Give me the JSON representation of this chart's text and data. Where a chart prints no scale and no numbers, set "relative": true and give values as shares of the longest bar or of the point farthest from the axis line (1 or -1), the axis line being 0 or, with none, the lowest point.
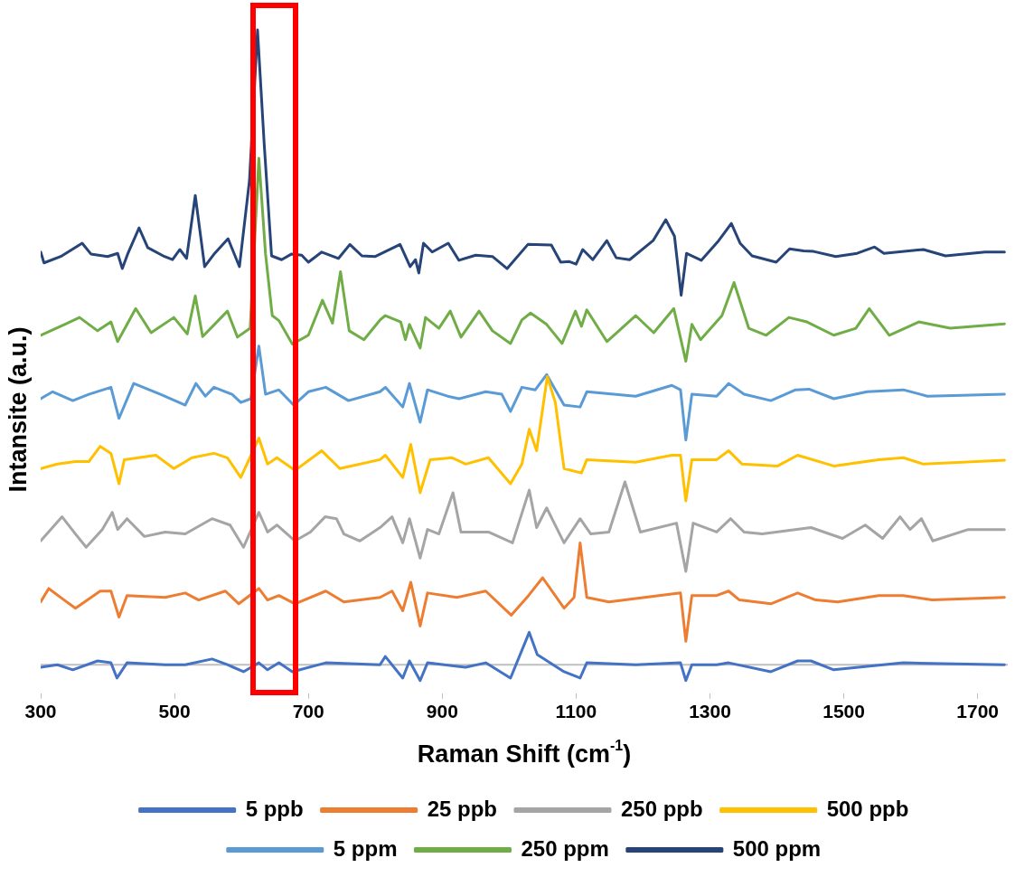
{
  "chart_data": {
    "type": "line",
    "xlabel": "Raman Shift (cm$^{-1}$)",
    "ylabel": "Intansite (a.u.)",
    "xlim": [
      300,
      1745
    ],
    "xticks": [
      300,
      500,
      700,
      900,
      1100,
      1300,
      1500,
      1700
    ],
    "relative": true,
    "grid": false,
    "legend": "bottom",
    "marker": "none",
    "series": [
      {
        "name": "5 ppb",
        "color": "#4472c4",
        "x": [
          300,
          325,
          348,
          385,
          405,
          414,
          429,
          486,
          516,
          556,
          579,
          603,
          626,
          639,
          656,
          676,
          726,
          807,
          815,
          841,
          851,
          867,
          878,
          935,
          965,
          1002,
          1030,
          1042,
          1082,
          1106,
          1116,
          1189,
          1256,
          1264,
          1273,
          1310,
          1328,
          1391,
          1431,
          1451,
          1485,
          1589,
          1740
        ],
        "values": [
          -0.004,
          0.0,
          -0.008,
          0.006,
          0.003,
          -0.021,
          0.003,
          0.0,
          0.0,
          0.009,
          0.0,
          -0.011,
          0.003,
          -0.008,
          0.003,
          -0.011,
          0.003,
          0.0,
          0.013,
          -0.021,
          0.006,
          -0.025,
          0.003,
          -0.004,
          0.003,
          -0.021,
          0.051,
          0.016,
          -0.011,
          -0.021,
          0.003,
          0.0,
          0.003,
          -0.025,
          0.0,
          0.0,
          0.003,
          -0.011,
          0.006,
          0.006,
          -0.008,
          0.003,
          0.0
        ]
      },
      {
        "name": "25 ppb",
        "color": "#ed7d31",
        "x": [
          300,
          312,
          335,
          352,
          389,
          405,
          417,
          429,
          486,
          516,
          536,
          576,
          596,
          626,
          639,
          656,
          680,
          726,
          753,
          807,
          825,
          841,
          853,
          867,
          878,
          922,
          965,
          1003,
          1029,
          1050,
          1082,
          1097,
          1106,
          1116,
          1149,
          1256,
          1264,
          1273,
          1310,
          1328,
          1344,
          1391,
          1431,
          1458,
          1491,
          1552,
          1589,
          1632,
          1740
        ],
        "values": [
          0.099,
          0.12,
          0.102,
          0.089,
          0.116,
          0.116,
          0.075,
          0.109,
          0.106,
          0.113,
          0.102,
          0.116,
          0.096,
          0.12,
          0.102,
          0.109,
          0.096,
          0.116,
          0.099,
          0.106,
          0.116,
          0.085,
          0.13,
          0.061,
          0.113,
          0.106,
          0.116,
          0.078,
          0.109,
          0.137,
          0.089,
          0.106,
          0.192,
          0.106,
          0.099,
          0.113,
          0.037,
          0.109,
          0.109,
          0.116,
          0.102,
          0.096,
          0.113,
          0.102,
          0.099,
          0.109,
          0.109,
          0.102,
          0.106
        ]
      },
      {
        "name": "250 ppb",
        "color": "#a5a5a5",
        "x": [
          300,
          332,
          352,
          368,
          392,
          407,
          415,
          429,
          455,
          486,
          516,
          556,
          583,
          603,
          626,
          639,
          653,
          680,
          703,
          725,
          742,
          753,
          777,
          807,
          825,
          841,
          851,
          867,
          878,
          895,
          916,
          928,
          969,
          1005,
          1030,
          1041,
          1056,
          1082,
          1106,
          1122,
          1149,
          1173,
          1196,
          1250,
          1264,
          1275,
          1310,
          1331,
          1351,
          1378,
          1451,
          1498,
          1532,
          1558,
          1584,
          1599,
          1616,
          1633,
          1686,
          1740
        ],
        "values": [
          0.195,
          0.233,
          0.206,
          0.185,
          0.213,
          0.24,
          0.213,
          0.23,
          0.202,
          0.209,
          0.206,
          0.23,
          0.22,
          0.185,
          0.24,
          0.209,
          0.22,
          0.195,
          0.209,
          0.233,
          0.23,
          0.206,
          0.195,
          0.216,
          0.233,
          0.192,
          0.23,
          0.168,
          0.213,
          0.206,
          0.271,
          0.209,
          0.209,
          0.192,
          0.275,
          0.216,
          0.247,
          0.192,
          0.23,
          0.206,
          0.209,
          0.288,
          0.209,
          0.223,
          0.147,
          0.223,
          0.209,
          0.23,
          0.209,
          0.206,
          0.216,
          0.199,
          0.22,
          0.199,
          0.233,
          0.213,
          0.23,
          0.195,
          0.213,
          0.213
        ]
      },
      {
        "name": "500 ppb",
        "color": "#ffc000",
        "x": [
          300,
          325,
          352,
          372,
          389,
          405,
          417,
          425,
          472,
          499,
          526,
          559,
          579,
          599,
          626,
          639,
          653,
          680,
          720,
          747,
          807,
          815,
          841,
          853,
          867,
          882,
          915,
          935,
          969,
          1002,
          1019,
          1030,
          1041,
          1057,
          1069,
          1082,
          1108,
          1116,
          1189,
          1243,
          1256,
          1264,
          1273,
          1310,
          1328,
          1348,
          1401,
          1431,
          1485,
          1552,
          1589,
          1619,
          1740
        ],
        "values": [
          0.309,
          0.316,
          0.32,
          0.32,
          0.344,
          0.333,
          0.285,
          0.323,
          0.33,
          0.309,
          0.326,
          0.333,
          0.326,
          0.295,
          0.357,
          0.316,
          0.326,
          0.306,
          0.337,
          0.309,
          0.323,
          0.33,
          0.295,
          0.347,
          0.271,
          0.323,
          0.326,
          0.316,
          0.326,
          0.285,
          0.316,
          0.371,
          0.337,
          0.454,
          0.413,
          0.309,
          0.302,
          0.323,
          0.319,
          0.33,
          0.33,
          0.258,
          0.323,
          0.323,
          0.337,
          0.316,
          0.313,
          0.33,
          0.313,
          0.323,
          0.326,
          0.316,
          0.322
        ]
      },
      {
        "name": "5 ppm",
        "color": "#5b9bd5",
        "x": [
          300,
          318,
          348,
          372,
          405,
          417,
          439,
          479,
          516,
          532,
          546,
          559,
          586,
          599,
          614,
          626,
          636,
          656,
          678,
          700,
          726,
          760,
          807,
          815,
          841,
          851,
          867,
          878,
          908,
          925,
          965,
          989,
          1002,
          1019,
          1039,
          1056,
          1082,
          1106,
          1116,
          1189,
          1243,
          1256,
          1264,
          1273,
          1310,
          1328,
          1351,
          1391,
          1428,
          1448,
          1485,
          1535,
          1589,
          1625,
          1740
        ],
        "values": [
          0.419,
          0.43,
          0.416,
          0.426,
          0.437,
          0.388,
          0.443,
          0.426,
          0.409,
          0.443,
          0.423,
          0.437,
          0.426,
          0.413,
          0.419,
          0.502,
          0.426,
          0.433,
          0.409,
          0.43,
          0.437,
          0.416,
          0.43,
          0.437,
          0.406,
          0.443,
          0.382,
          0.433,
          0.423,
          0.419,
          0.43,
          0.426,
          0.399,
          0.437,
          0.433,
          0.457,
          0.409,
          0.406,
          0.43,
          0.423,
          0.44,
          0.433,
          0.354,
          0.426,
          0.423,
          0.443,
          0.426,
          0.416,
          0.433,
          0.434,
          0.419,
          0.43,
          0.433,
          0.423,
          0.426
        ]
      },
      {
        "name": "250 ppm",
        "color": "#70ad47",
        "x": [
          300,
          338,
          358,
          385,
          405,
          415,
          442,
          465,
          499,
          519,
          531,
          542,
          579,
          594,
          613,
          626,
          636,
          646,
          656,
          676,
          700,
          721,
          736,
          748,
          761,
          783,
          807,
          815,
          838,
          845,
          851,
          867,
          875,
          895,
          912,
          928,
          955,
          975,
          1002,
          1019,
          1032,
          1056,
          1079,
          1099,
          1108,
          1116,
          1146,
          1189,
          1216,
          1246,
          1264,
          1273,
          1286,
          1318,
          1336,
          1358,
          1384,
          1418,
          1445,
          1485,
          1518,
          1538,
          1568,
          1612,
          1659,
          1740
        ],
        "values": [
          0.519,
          0.537,
          0.547,
          0.526,
          0.54,
          0.509,
          0.561,
          0.523,
          0.547,
          0.521,
          0.581,
          0.517,
          0.557,
          0.516,
          0.53,
          0.798,
          0.647,
          0.55,
          0.542,
          0.505,
          0.519,
          0.574,
          0.538,
          0.619,
          0.526,
          0.512,
          0.543,
          0.55,
          0.54,
          0.512,
          0.536,
          0.499,
          0.547,
          0.53,
          0.557,
          0.516,
          0.557,
          0.526,
          0.506,
          0.543,
          0.554,
          0.536,
          0.506,
          0.557,
          0.533,
          0.559,
          0.509,
          0.55,
          0.523,
          0.561,
          0.478,
          0.536,
          0.512,
          0.55,
          0.602,
          0.53,
          0.519,
          0.547,
          0.54,
          0.519,
          0.53,
          0.561,
          0.519,
          0.54,
          0.53,
          0.537
        ]
      },
      {
        "name": "500 ppm",
        "color": "#264478",
        "x": [
          300,
          305,
          330,
          362,
          375,
          400,
          415,
          422,
          430,
          447,
          460,
          485,
          497,
          508,
          518,
          531,
          545,
          560,
          580,
          597,
          612,
          624,
          634,
          645,
          660,
          675,
          690,
          700,
          720,
          745,
          762,
          780,
          800,
          837,
          852,
          860,
          865,
          872,
          885,
          909,
          925,
          950,
          975,
          997,
          1028,
          1063,
          1077,
          1090,
          1100,
          1110,
          1125,
          1146,
          1160,
          1180,
          1215,
          1234,
          1247,
          1257,
          1265,
          1287,
          1313,
          1332,
          1345,
          1363,
          1399,
          1419,
          1440,
          1455,
          1488,
          1520,
          1546,
          1560,
          1619,
          1652,
          1711,
          1740
        ],
        "values": [
          0.65,
          0.633,
          0.643,
          0.664,
          0.647,
          0.643,
          0.648,
          0.624,
          0.647,
          0.688,
          0.657,
          0.643,
          0.638,
          0.654,
          0.64,
          0.739,
          0.627,
          0.648,
          0.671,
          0.627,
          0.763,
          1,
          0.82,
          0.644,
          0.638,
          0.647,
          0.645,
          0.634,
          0.65,
          0.64,
          0.662,
          0.644,
          0.643,
          0.662,
          0.627,
          0.638,
          0.617,
          0.664,
          0.65,
          0.664,
          0.637,
          0.645,
          0.643,
          0.624,
          0.662,
          0.661,
          0.634,
          0.635,
          0.631,
          0.654,
          0.638,
          0.668,
          0.641,
          0.638,
          0.668,
          0.701,
          0.675,
          0.582,
          0.648,
          0.637,
          0.668,
          0.695,
          0.664,
          0.644,
          0.634,
          0.655,
          0.652,
          0.651,
          0.643,
          0.648,
          0.658,
          0.648,
          0.654,
          0.644,
          0.65,
          0.65
        ]
      }
    ]
  }
}
